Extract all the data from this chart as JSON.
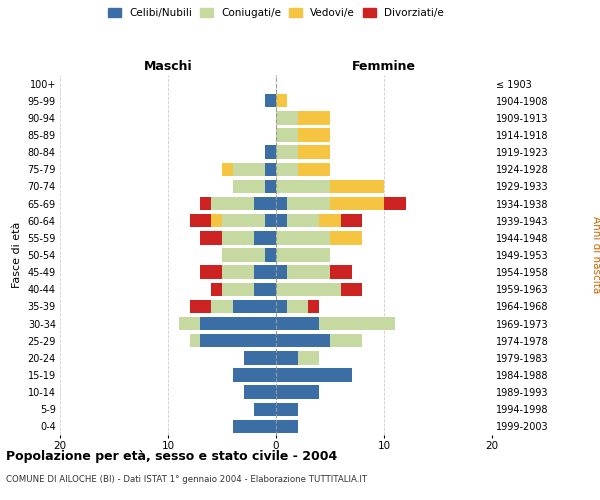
{
  "age_groups": [
    "0-4",
    "5-9",
    "10-14",
    "15-19",
    "20-24",
    "25-29",
    "30-34",
    "35-39",
    "40-44",
    "45-49",
    "50-54",
    "55-59",
    "60-64",
    "65-69",
    "70-74",
    "75-79",
    "80-84",
    "85-89",
    "90-94",
    "95-99",
    "100+"
  ],
  "birth_years": [
    "1999-2003",
    "1994-1998",
    "1989-1993",
    "1984-1988",
    "1979-1983",
    "1974-1978",
    "1969-1973",
    "1964-1968",
    "1959-1963",
    "1954-1958",
    "1949-1953",
    "1944-1948",
    "1939-1943",
    "1934-1938",
    "1929-1933",
    "1924-1928",
    "1919-1923",
    "1914-1918",
    "1909-1913",
    "1904-1908",
    "≤ 1903"
  ],
  "maschi": {
    "celibi": [
      4,
      2,
      3,
      4,
      3,
      7,
      7,
      4,
      2,
      2,
      1,
      2,
      1,
      2,
      1,
      1,
      1,
      0,
      0,
      1,
      0
    ],
    "coniugati": [
      0,
      0,
      0,
      0,
      0,
      1,
      2,
      2,
      3,
      3,
      4,
      3,
      4,
      4,
      3,
      3,
      0,
      0,
      0,
      0,
      0
    ],
    "vedovi": [
      0,
      0,
      0,
      0,
      0,
      0,
      0,
      0,
      0,
      0,
      0,
      0,
      1,
      0,
      0,
      1,
      0,
      0,
      0,
      0,
      0
    ],
    "divorziati": [
      0,
      0,
      0,
      0,
      0,
      0,
      0,
      2,
      1,
      2,
      0,
      2,
      2,
      1,
      0,
      0,
      0,
      0,
      0,
      0,
      0
    ]
  },
  "femmine": {
    "nubili": [
      2,
      2,
      4,
      7,
      2,
      5,
      4,
      1,
      0,
      1,
      0,
      0,
      1,
      1,
      0,
      0,
      0,
      0,
      0,
      0,
      0
    ],
    "coniugate": [
      0,
      0,
      0,
      0,
      2,
      3,
      7,
      2,
      6,
      4,
      5,
      5,
      3,
      4,
      5,
      2,
      2,
      2,
      2,
      0,
      0
    ],
    "vedove": [
      0,
      0,
      0,
      0,
      0,
      0,
      0,
      0,
      0,
      0,
      0,
      3,
      2,
      5,
      5,
      3,
      3,
      3,
      3,
      1,
      0
    ],
    "divorziate": [
      0,
      0,
      0,
      0,
      0,
      0,
      0,
      1,
      2,
      2,
      0,
      0,
      2,
      2,
      0,
      0,
      0,
      0,
      0,
      0,
      0
    ]
  },
  "color_celibi": "#3a6ea5",
  "color_coniugati": "#c5d9a0",
  "color_vedovi": "#f5c542",
  "color_divorziati": "#cc2222",
  "xlim": 20,
  "title": "Popolazione per età, sesso e stato civile - 2004",
  "subtitle": "COMUNE DI AILOCHE (BI) - Dati ISTAT 1° gennaio 2004 - Elaborazione TUTTITALIA.IT",
  "ylabel_left": "Fasce di età",
  "ylabel_right": "Anni di nascita",
  "xlabel_left": "Maschi",
  "xlabel_right": "Femmine"
}
